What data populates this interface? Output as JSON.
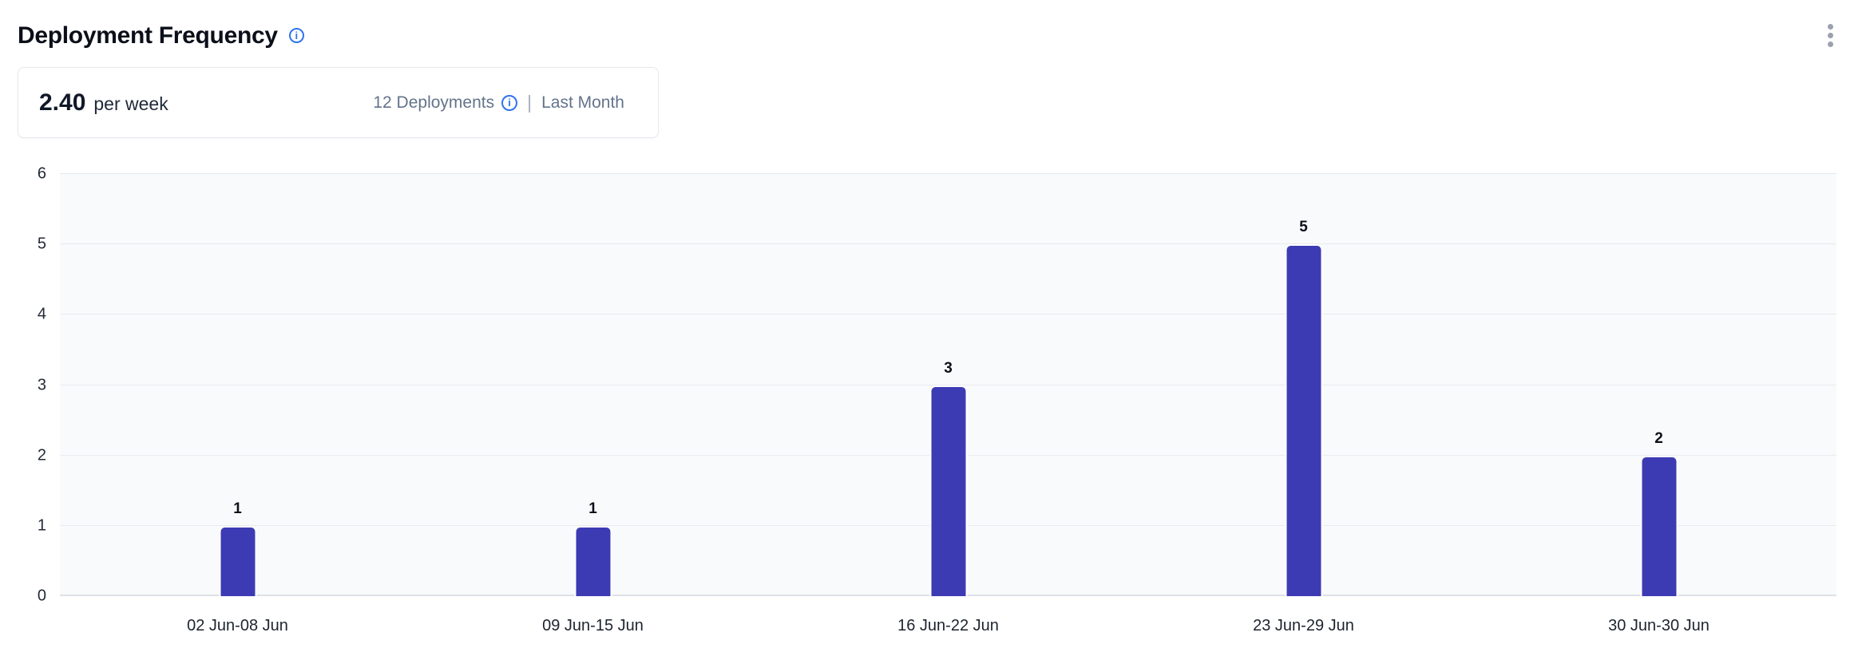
{
  "header": {
    "title": "Deployment Frequency"
  },
  "summary": {
    "value": "2.40",
    "unit": "per week",
    "deployments_label": "12 Deployments",
    "separator": "|",
    "period_label": "Last Month"
  },
  "colors": {
    "bar": "#3d3bb3",
    "info_blue": "#2f74ec",
    "plot_background": "#f8fafc",
    "gridline": "#e8ebf0",
    "muted_text": "#64748b"
  },
  "chart_data": {
    "type": "bar",
    "title": "Deployment Frequency",
    "categories": [
      "02 Jun-08 Jun",
      "09 Jun-15 Jun",
      "16 Jun-22 Jun",
      "23 Jun-29 Jun",
      "30 Jun-30 Jun"
    ],
    "values": [
      1,
      1,
      3,
      5,
      2
    ],
    "data_labels": [
      "1",
      "1",
      "3",
      "5",
      "2"
    ],
    "xlabel": "",
    "ylabel": "",
    "ylim": [
      0,
      6
    ],
    "yticks": [
      0,
      1,
      2,
      3,
      4,
      5,
      6
    ],
    "grid": true,
    "legend": false,
    "bar_color": "#3d3bb3",
    "plot_bg": "#f8fafc"
  }
}
